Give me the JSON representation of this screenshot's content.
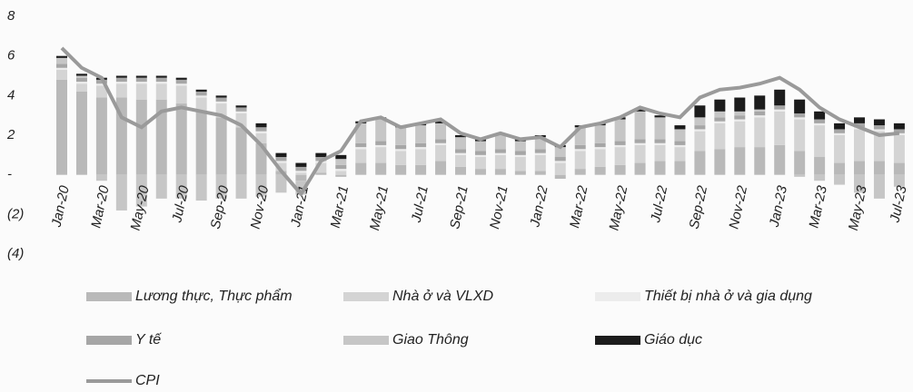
{
  "chart_data": {
    "type": "bar",
    "categories": [
      "Jan-20",
      null,
      "Mar-20",
      null,
      "May-20",
      null,
      "Jul-20",
      null,
      "Sep-20",
      null,
      "Nov-20",
      null,
      "Jan-21",
      null,
      "Mar-21",
      null,
      "May-21",
      null,
      "Jul-21",
      null,
      "Sep-21",
      null,
      "Nov-21",
      null,
      "Jan-22",
      null,
      "Mar-22",
      null,
      "May-22",
      null,
      "Jul-22",
      null,
      "Sep-22",
      null,
      "Nov-22",
      null,
      "Jan-23",
      null,
      "Mar-23",
      null,
      "May-23",
      null,
      "Jul-23"
    ],
    "ylim": [
      -4,
      8
    ],
    "yticks": [
      {
        "value": -4,
        "label": "(4)"
      },
      {
        "value": -2,
        "label": "(2)"
      },
      {
        "value": 0,
        "label": "-"
      },
      2,
      4,
      6,
      8
    ],
    "series": [
      {
        "name": "Lương thực, Thực phẩm",
        "color": "#b9b9b9",
        "values": [
          4.8,
          4.2,
          3.9,
          3.9,
          3.8,
          3.8,
          3.6,
          3.2,
          2.9,
          2.4,
          1.6,
          0.2,
          -0.3,
          0.1,
          -0.1,
          0.6,
          0.6,
          0.5,
          0.5,
          0.7,
          0.4,
          0.3,
          0.3,
          0.2,
          0.2,
          -0.2,
          0.3,
          0.4,
          0.5,
          0.6,
          0.7,
          0.7,
          1.2,
          1.3,
          1.4,
          1.4,
          1.5,
          1.2,
          0.9,
          0.6,
          0.7,
          0.7,
          0.6
        ]
      },
      {
        "name": "Nhà ở và VLXD",
        "color": "#d4d4d4",
        "values": [
          0.5,
          0.4,
          0.6,
          0.7,
          0.8,
          0.8,
          0.9,
          0.7,
          0.7,
          0.7,
          0.5,
          0.4,
          0.1,
          0.5,
          0.2,
          0.7,
          0.8,
          0.7,
          0.8,
          0.8,
          0.6,
          0.6,
          0.7,
          0.7,
          0.8,
          0.6,
          0.9,
          0.9,
          0.9,
          0.9,
          0.8,
          0.7,
          1.0,
          1.3,
          1.3,
          1.5,
          1.7,
          1.6,
          1.6,
          1.4,
          1.6,
          1.5,
          1.4
        ]
      },
      {
        "name": "Thiết bị nhà ở và gia dụng",
        "color": "#ececec",
        "values": [
          0.1,
          0.1,
          0.1,
          0.1,
          0.1,
          0.1,
          0.1,
          0.1,
          0.1,
          0.1,
          0.1,
          0.1,
          0.1,
          0.1,
          0.1,
          0.1,
          0.1,
          0.1,
          0.1,
          0.1,
          0.1,
          0.1,
          0.1,
          0.1,
          0.1,
          0.1,
          0.1,
          0.1,
          0.1,
          0.1,
          0.1,
          0.1,
          0.1,
          0.1,
          0.1,
          0.1,
          0.1,
          0.1,
          0.1,
          0.1,
          0.1,
          0.1,
          0.1
        ]
      },
      {
        "name": "Y tế",
        "color": "#a6a6a6",
        "values": [
          0.2,
          0.2,
          0.2,
          0.2,
          0.2,
          0.2,
          0.2,
          0.2,
          0.2,
          0.2,
          0.2,
          0.2,
          0.2,
          0.2,
          0.2,
          0.2,
          0.2,
          0.2,
          0.2,
          0.2,
          0.2,
          0.2,
          0.2,
          0.2,
          0.2,
          0.2,
          0.2,
          0.2,
          0.2,
          0.2,
          0.2,
          0.2,
          0.2,
          0.2,
          0.2,
          0.2,
          0.2,
          0.2,
          0.2,
          0.2,
          0.2,
          0.2,
          0.2
        ]
      },
      {
        "name": "Giao Thông",
        "color": "#c6c6c6",
        "values": [
          0.3,
          0.1,
          -0.3,
          -1.8,
          -1.6,
          -1.2,
          -1.2,
          -1.3,
          -1.2,
          -1.2,
          -1.1,
          -0.9,
          -0.7,
          0,
          0.3,
          1.0,
          1.1,
          0.9,
          0.9,
          0.8,
          0.6,
          0.5,
          0.7,
          0.5,
          0.6,
          0.5,
          0.9,
          0.9,
          1.1,
          1.4,
          1.1,
          0.6,
          0.4,
          0.3,
          0.2,
          0.1,
          0,
          -0.1,
          -0.3,
          -0.5,
          -0.9,
          -1.2,
          -0.6
        ]
      },
      {
        "name": "Giáo dục",
        "color": "#1c1c1c",
        "values": [
          0.1,
          0.1,
          0.1,
          0.1,
          0.1,
          0.1,
          0.1,
          0.1,
          0.1,
          0.1,
          0.2,
          0.2,
          0.2,
          0.2,
          0.2,
          0.1,
          0.1,
          0.1,
          0.1,
          0.1,
          0.1,
          0.1,
          0.1,
          0.1,
          0.1,
          0.1,
          0.1,
          0.1,
          0.1,
          0.1,
          0.1,
          0.2,
          0.6,
          0.6,
          0.7,
          0.7,
          0.8,
          0.7,
          0.4,
          0.3,
          0.3,
          0.3,
          0.3
        ]
      },
      {
        "name": "CPI",
        "color": "#9a9a9a",
        "type": "line",
        "values": [
          6.4,
          5.4,
          4.9,
          2.9,
          2.4,
          3.2,
          3.4,
          3.2,
          3.0,
          2.5,
          1.5,
          0.2,
          -0.97,
          0.7,
          1.2,
          2.7,
          2.9,
          2.4,
          2.6,
          2.8,
          2.1,
          1.8,
          2.1,
          1.8,
          1.9,
          1.4,
          2.4,
          2.6,
          2.9,
          3.4,
          3.1,
          2.9,
          3.9,
          4.3,
          4.4,
          4.6,
          4.9,
          4.3,
          3.4,
          2.8,
          2.4,
          2.0,
          2.1
        ]
      }
    ]
  }
}
